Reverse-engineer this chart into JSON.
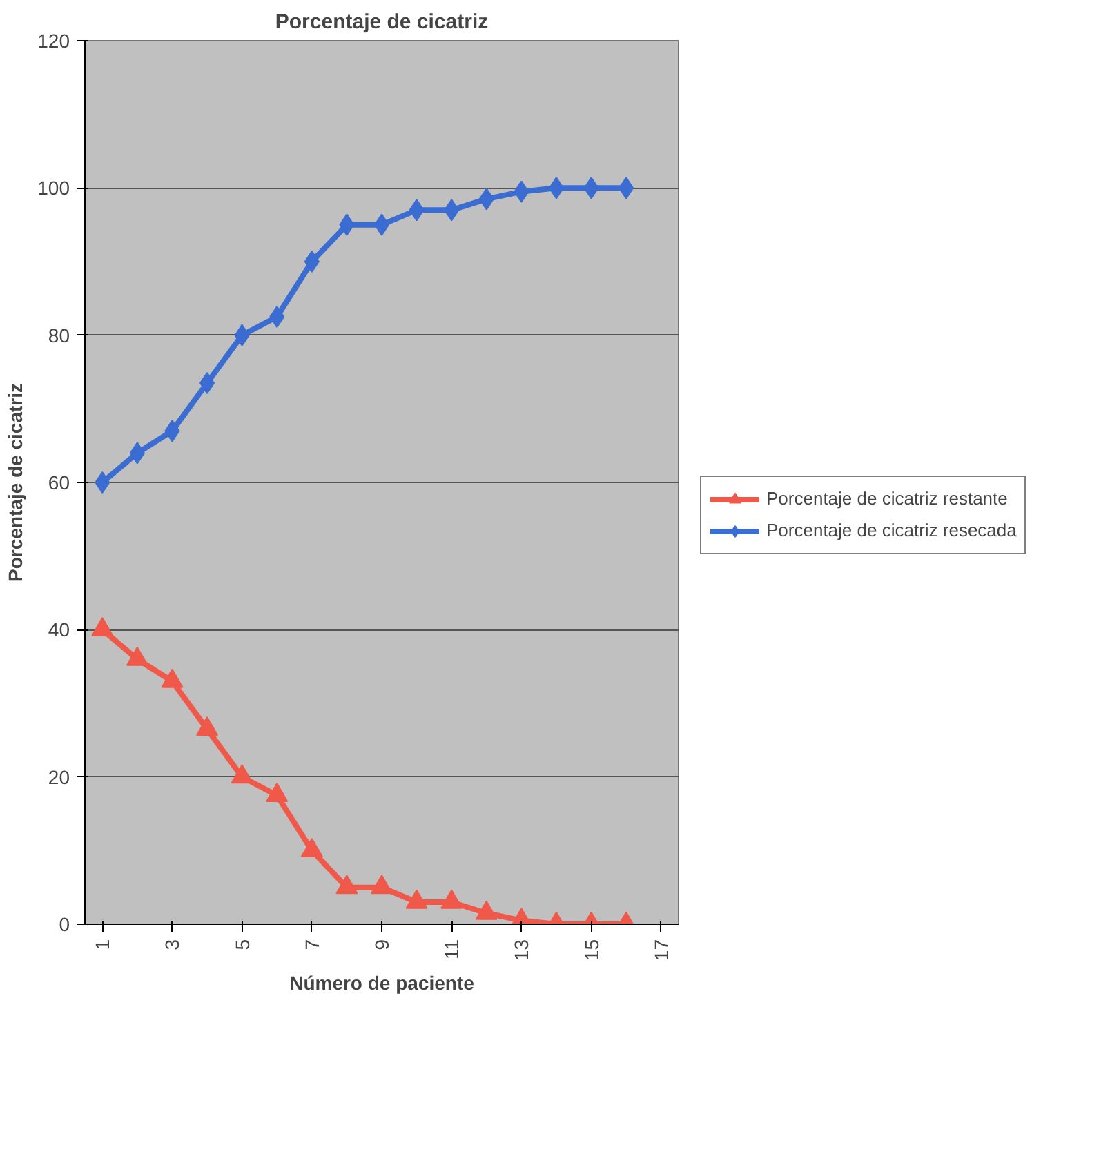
{
  "chart_data": {
    "type": "line",
    "title": "Porcentaje de cicatriz",
    "xlabel": "Número de paciente",
    "ylabel": "Porcentaje de cicatriz",
    "x": [
      1,
      2,
      3,
      4,
      5,
      6,
      7,
      8,
      9,
      10,
      11,
      12,
      13,
      14,
      15,
      16
    ],
    "series": [
      {
        "name": "Porcentaje de cicatriz restante",
        "color": "#f0584a",
        "marker": "triangle",
        "values": [
          40,
          36,
          33,
          26.5,
          20,
          17.5,
          10,
          5,
          5,
          3,
          3,
          1.5,
          0.5,
          0,
          0,
          0
        ]
      },
      {
        "name": "Porcentaje de cicatriz resecada",
        "color": "#3a6cd2",
        "marker": "diamond",
        "values": [
          60,
          64,
          67,
          73.5,
          80,
          82.5,
          90,
          95,
          95,
          97,
          97,
          98.5,
          99.5,
          100,
          100,
          100
        ]
      }
    ],
    "xlim": [
      0.5,
      17.5
    ],
    "xticks": [
      1,
      3,
      5,
      7,
      9,
      11,
      13,
      15,
      17
    ],
    "ylim": [
      0,
      120
    ],
    "yticks": [
      0,
      20,
      40,
      60,
      80,
      100,
      120
    ],
    "grid": "y",
    "legend": "right",
    "line_style": "solid"
  }
}
